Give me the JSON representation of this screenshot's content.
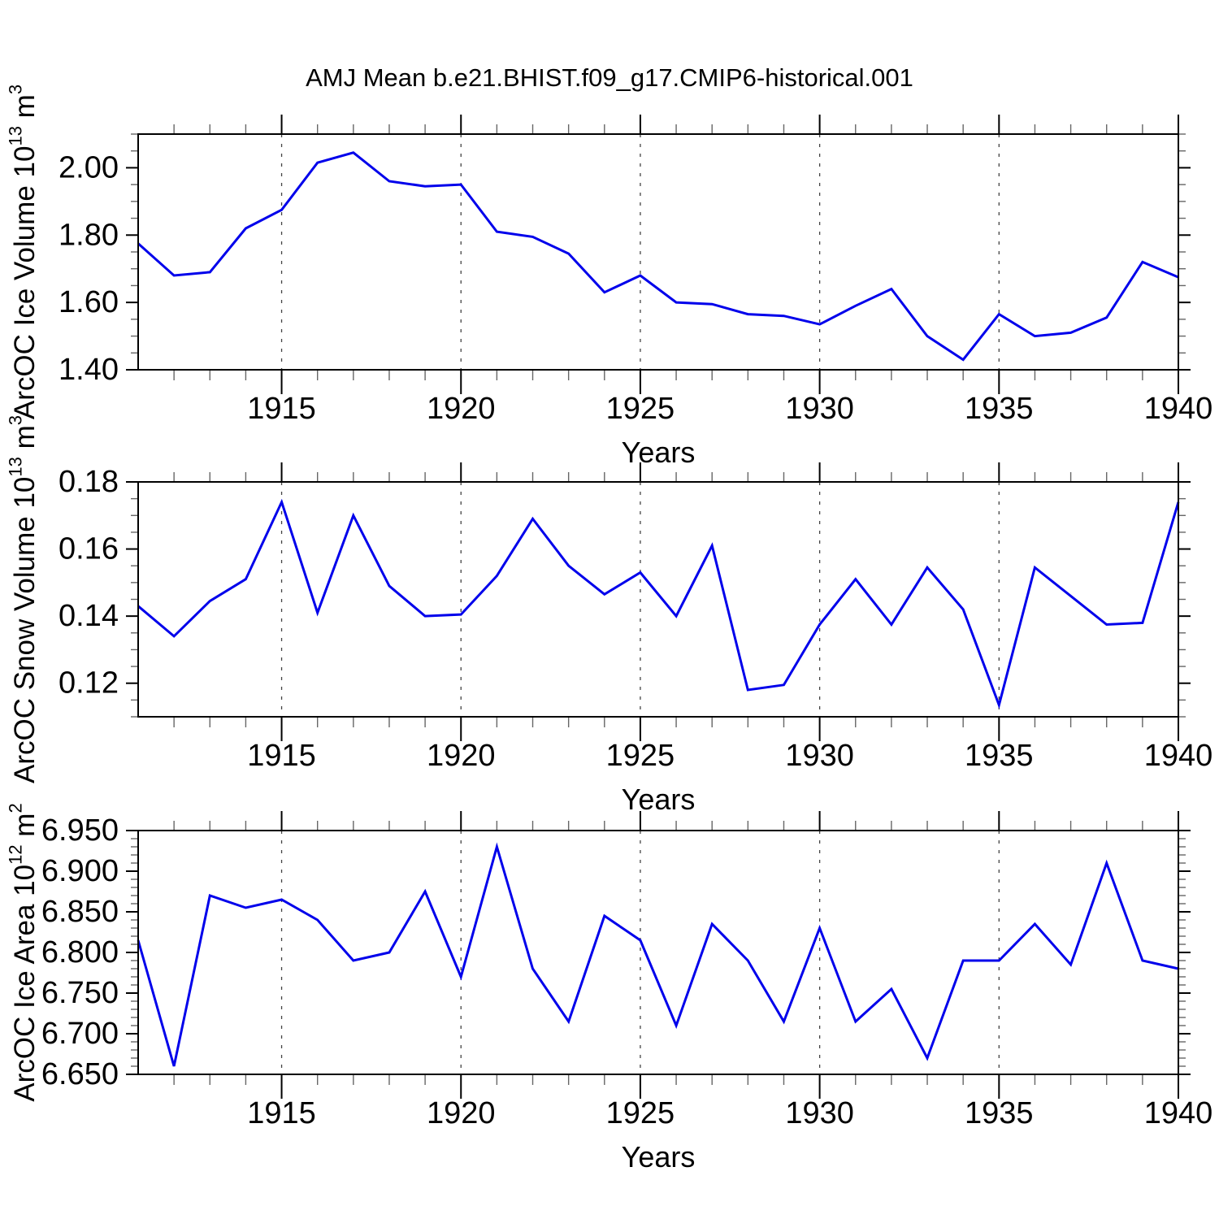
{
  "title": "AMJ Mean b.e21.BHIST.f09_g17.CMIP6-historical.001",
  "style": {
    "line_color": "#0000eb",
    "axis_color": "#000000",
    "minor_tick_color": "#666666",
    "grid_color": "#444444",
    "background": "#ffffff"
  },
  "chart_data": [
    {
      "type": "line",
      "name": "ice-volume",
      "ylabel": "ArcOC Ice Volume 10^13 m^3",
      "ylabel_parts": [
        [
          "ArcOC Ice Volume 10",
          false
        ],
        [
          "13",
          true
        ],
        [
          " m",
          false
        ],
        [
          "3",
          true
        ]
      ],
      "xlabel": "Years",
      "years": [
        1911,
        1912,
        1913,
        1914,
        1915,
        1916,
        1917,
        1918,
        1919,
        1920,
        1921,
        1922,
        1923,
        1924,
        1925,
        1926,
        1927,
        1928,
        1929,
        1930,
        1931,
        1932,
        1933,
        1934,
        1935,
        1936,
        1937,
        1938,
        1939,
        1940
      ],
      "values": [
        1.775,
        1.68,
        1.69,
        1.82,
        1.875,
        2.015,
        2.045,
        1.96,
        1.945,
        1.95,
        1.81,
        1.795,
        1.745,
        1.63,
        1.68,
        1.6,
        1.595,
        1.565,
        1.56,
        1.535,
        1.59,
        1.64,
        1.5,
        1.43,
        1.565,
        1.5,
        1.51,
        1.555,
        1.72,
        1.675
      ],
      "ylim": [
        1.4,
        2.1
      ],
      "ytick_values": [
        1.4,
        1.6,
        1.8,
        2.0
      ],
      "ytick_labels": [
        "1.40",
        "1.60",
        "1.80",
        "2.00"
      ],
      "y_minor_step": 0.05,
      "xlim": [
        1911,
        1940
      ],
      "xtick_values": [
        1915,
        1920,
        1925,
        1930,
        1935,
        1940
      ],
      "xtick_labels": [
        "1915",
        "1920",
        "1925",
        "1930",
        "1935",
        "1940"
      ],
      "x_minor_step": 1,
      "grid_at": [
        1915,
        1920,
        1925,
        1930,
        1935
      ],
      "grid_style": "dashed-vertical",
      "legend": "none"
    },
    {
      "type": "line",
      "name": "snow-volume",
      "ylabel": "ArcOC Snow Volume 10^13 m^3",
      "ylabel_parts": [
        [
          "ArcOC Snow Volume 10",
          false
        ],
        [
          "13",
          true
        ],
        [
          " m",
          false
        ],
        [
          "3",
          true
        ]
      ],
      "xlabel": "Years",
      "years": [
        1911,
        1912,
        1913,
        1914,
        1915,
        1916,
        1917,
        1918,
        1919,
        1920,
        1921,
        1922,
        1923,
        1924,
        1925,
        1926,
        1927,
        1928,
        1929,
        1930,
        1931,
        1932,
        1933,
        1934,
        1935,
        1936,
        1937,
        1938,
        1939,
        1940
      ],
      "values": [
        0.143,
        0.134,
        0.1445,
        0.151,
        0.174,
        0.141,
        0.17,
        0.149,
        0.14,
        0.1405,
        0.152,
        0.169,
        0.155,
        0.1465,
        0.153,
        0.14,
        0.161,
        0.118,
        0.1195,
        0.1375,
        0.151,
        0.1375,
        0.1545,
        0.142,
        0.1135,
        0.1545,
        0.146,
        0.1375,
        0.138,
        0.174
      ],
      "ylim": [
        0.11,
        0.18
      ],
      "ytick_values": [
        0.12,
        0.14,
        0.16,
        0.18
      ],
      "ytick_labels": [
        "0.12",
        "0.14",
        "0.16",
        "0.18"
      ],
      "y_minor_step": 0.005,
      "xlim": [
        1911,
        1940
      ],
      "xtick_values": [
        1915,
        1920,
        1925,
        1930,
        1935,
        1940
      ],
      "xtick_labels": [
        "1915",
        "1920",
        "1925",
        "1930",
        "1935",
        "1940"
      ],
      "x_minor_step": 1,
      "grid_at": [
        1915,
        1920,
        1925,
        1930,
        1935
      ],
      "grid_style": "dashed-vertical",
      "legend": "none"
    },
    {
      "type": "line",
      "name": "ice-area",
      "ylabel": "ArcOC Ice Area 10^12 m^2",
      "ylabel_parts": [
        [
          "ArcOC Ice Area 10",
          false
        ],
        [
          "12",
          true
        ],
        [
          " m",
          false
        ],
        [
          "2",
          true
        ]
      ],
      "xlabel": "Years",
      "years": [
        1911,
        1912,
        1913,
        1914,
        1915,
        1916,
        1917,
        1918,
        1919,
        1920,
        1921,
        1922,
        1923,
        1924,
        1925,
        1926,
        1927,
        1928,
        1929,
        1930,
        1931,
        1932,
        1933,
        1934,
        1935,
        1936,
        1937,
        1938,
        1939,
        1940
      ],
      "values": [
        6.815,
        6.66,
        6.87,
        6.855,
        6.865,
        6.84,
        6.79,
        6.8,
        6.875,
        6.77,
        6.93,
        6.78,
        6.715,
        6.845,
        6.815,
        6.71,
        6.835,
        6.79,
        6.715,
        6.83,
        6.715,
        6.755,
        6.67,
        6.79,
        6.79,
        6.835,
        6.785,
        6.91,
        6.79,
        6.78
      ],
      "ylim": [
        6.65,
        6.95
      ],
      "ytick_values": [
        6.65,
        6.7,
        6.75,
        6.8,
        6.85,
        6.9,
        6.95
      ],
      "ytick_labels": [
        "6.650",
        "6.700",
        "6.750",
        "6.800",
        "6.850",
        "6.900",
        "6.950"
      ],
      "y_minor_step": 0.01,
      "xlim": [
        1911,
        1940
      ],
      "xtick_values": [
        1915,
        1920,
        1925,
        1930,
        1935,
        1940
      ],
      "xtick_labels": [
        "1915",
        "1920",
        "1925",
        "1930",
        "1935",
        "1940"
      ],
      "x_minor_step": 1,
      "grid_at": [
        1915,
        1920,
        1925,
        1930,
        1935
      ],
      "grid_style": "dashed-vertical",
      "legend": "none"
    }
  ]
}
